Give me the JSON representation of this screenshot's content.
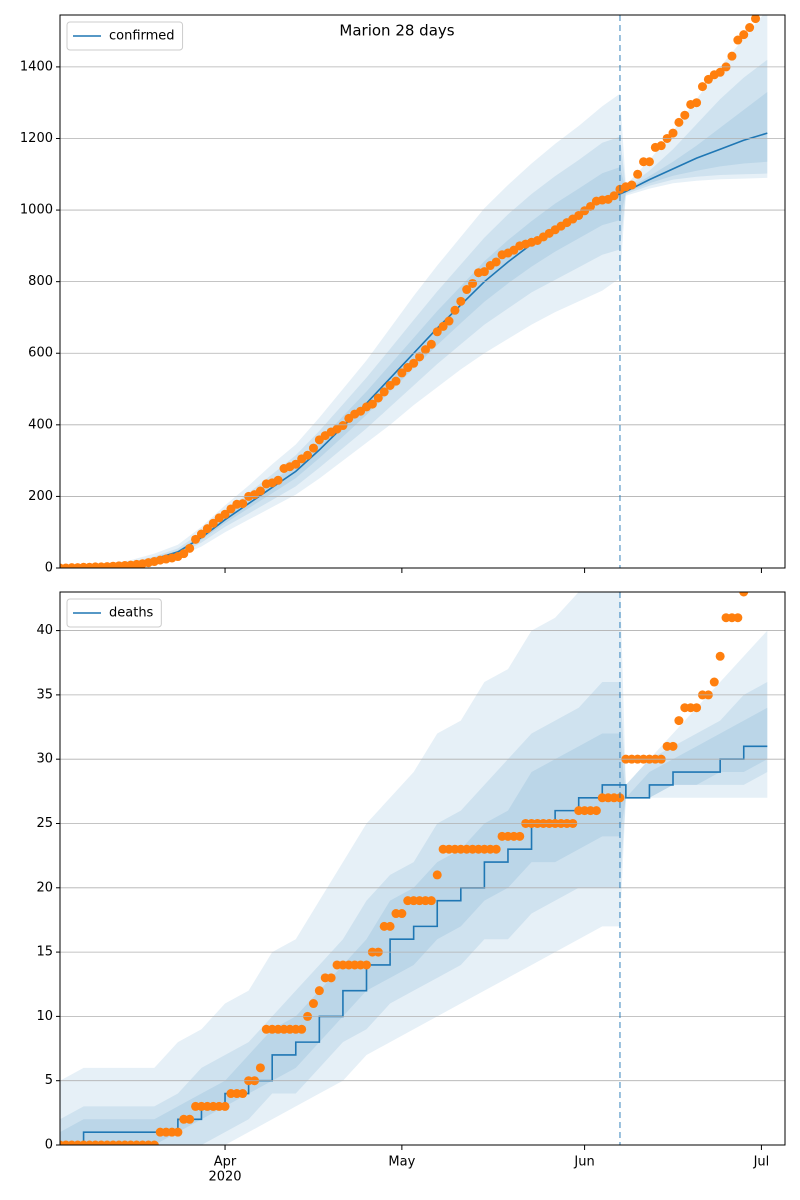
{
  "chart_data": [
    {
      "type": "line",
      "title": "Marion 28 days",
      "xlim": [
        0,
        123
      ],
      "ylim": [
        0,
        1545
      ],
      "yticks": [
        0,
        200,
        400,
        600,
        800,
        1000,
        1200,
        1400
      ],
      "grid": true,
      "legend": "upper left",
      "forecast_start": 95,
      "x": [
        0,
        4,
        8,
        12,
        16,
        20,
        24,
        28,
        32,
        36,
        40,
        44,
        48,
        52,
        56,
        60,
        64,
        68,
        72,
        76,
        80,
        84,
        88,
        92,
        95,
        96,
        100,
        104,
        108,
        112,
        116,
        120
      ],
      "series": [
        {
          "name": "confirmed",
          "color": "#1f77b4",
          "values": [
            0,
            1,
            3,
            10,
            25,
            45,
            85,
            135,
            180,
            225,
            270,
            330,
            395,
            460,
            530,
            600,
            670,
            735,
            800,
            855,
            905,
            950,
            990,
            1030,
            1045,
            1052,
            1085,
            1115,
            1145,
            1170,
            1195,
            1215
          ]
        },
        {
          "color": "#ff7f0e",
          "marker": "o",
          "x": [
            0,
            1,
            2,
            3,
            4,
            5,
            6,
            7,
            8,
            9,
            10,
            11,
            12,
            13,
            14,
            15,
            16,
            17,
            18,
            19,
            20,
            21,
            22,
            23,
            24,
            25,
            26,
            27,
            28,
            29,
            30,
            31,
            32,
            33,
            34,
            35,
            36,
            37,
            38,
            39,
            40,
            41,
            42,
            43,
            44,
            45,
            46,
            47,
            48,
            49,
            50,
            51,
            52,
            53,
            54,
            55,
            56,
            57,
            58,
            59,
            60,
            61,
            62,
            63,
            64,
            65,
            66,
            67,
            68,
            69,
            70,
            71,
            72,
            73,
            74,
            75,
            76,
            77,
            78,
            79,
            80,
            81,
            82,
            83,
            84,
            85,
            86,
            87,
            88,
            89,
            90,
            91,
            92,
            93,
            94,
            95,
            96,
            97,
            98,
            99,
            100,
            101,
            102,
            103,
            104,
            105,
            106,
            107,
            108,
            109,
            110,
            111,
            112,
            113,
            114,
            115,
            116,
            117,
            118
          ],
          "values": [
            0,
            0,
            1,
            1,
            2,
            2,
            3,
            3,
            4,
            5,
            6,
            7,
            8,
            10,
            12,
            15,
            18,
            22,
            25,
            28,
            32,
            40,
            55,
            80,
            95,
            110,
            125,
            140,
            150,
            165,
            178,
            180,
            200,
            205,
            215,
            235,
            238,
            245,
            278,
            283,
            290,
            305,
            315,
            335,
            358,
            370,
            380,
            388,
            398,
            418,
            430,
            438,
            450,
            458,
            475,
            492,
            510,
            522,
            545,
            560,
            572,
            590,
            610,
            625,
            660,
            675,
            690,
            720,
            745,
            778,
            795,
            825,
            828,
            845,
            855,
            875,
            880,
            888,
            900,
            905,
            910,
            915,
            925,
            935,
            945,
            955,
            965,
            975,
            985,
            998,
            1010,
            1025,
            1028,
            1030,
            1040,
            1058,
            1065,
            1070,
            1100,
            1135,
            1135,
            1175,
            1180,
            1200,
            1215,
            1245,
            1265,
            1295,
            1300,
            1345,
            1365,
            1378,
            1385,
            1400,
            1430,
            1475,
            1490,
            1510,
            1535
          ]
        }
      ],
      "bands": [
        {
          "color": "#1f77b4",
          "opacity": 0.11,
          "lower": [
            0,
            0,
            0,
            5,
            15,
            30,
            60,
            100,
            135,
            170,
            205,
            250,
            300,
            350,
            400,
            455,
            505,
            555,
            600,
            640,
            680,
            715,
            745,
            775,
            810,
            1040,
            1060,
            1075,
            1082,
            1086,
            1088,
            1090
          ],
          "upper": [
            3,
            6,
            12,
            22,
            40,
            65,
            115,
            175,
            230,
            290,
            345,
            420,
            500,
            580,
            670,
            760,
            845,
            925,
            1005,
            1070,
            1130,
            1185,
            1235,
            1290,
            1325,
            1070,
            1140,
            1220,
            1310,
            1400,
            1480,
            1560
          ]
        },
        {
          "color": "#1f77b4",
          "opacity": 0.11,
          "lower": [
            0,
            0,
            1,
            7,
            19,
            37,
            71,
            115,
            152,
            190,
            228,
            280,
            335,
            390,
            450,
            510,
            570,
            625,
            680,
            725,
            770,
            805,
            840,
            875,
            890,
            1045,
            1068,
            1085,
            1093,
            1098,
            1100,
            1102
          ],
          "upper": [
            2,
            4,
            8,
            16,
            32,
            55,
            100,
            158,
            210,
            262,
            315,
            383,
            457,
            532,
            612,
            693,
            773,
            848,
            923,
            988,
            1045,
            1095,
            1140,
            1188,
            1205,
            1062,
            1110,
            1170,
            1240,
            1310,
            1370,
            1420
          ]
        },
        {
          "color": "#1f77b4",
          "opacity": 0.11,
          "lower": [
            0,
            0,
            2,
            9,
            23,
            42,
            79,
            125,
            167,
            209,
            251,
            307,
            367,
            428,
            493,
            558,
            623,
            684,
            744,
            795,
            842,
            884,
            921,
            958,
            972,
            1049,
            1075,
            1096,
            1110,
            1122,
            1130,
            1135
          ],
          "upper": [
            1,
            2,
            4,
            12,
            28,
            49,
            92,
            145,
            194,
            242,
            290,
            354,
            424,
            493,
            568,
            643,
            718,
            787,
            857,
            916,
            969,
            1018,
            1060,
            1103,
            1120,
            1056,
            1095,
            1135,
            1180,
            1230,
            1280,
            1330
          ]
        }
      ]
    },
    {
      "type": "line",
      "xlim": [
        0,
        123
      ],
      "ylim": [
        0,
        43
      ],
      "yticks": [
        0,
        5,
        10,
        15,
        20,
        25,
        30,
        35,
        40
      ],
      "grid": true,
      "legend": "upper left",
      "forecast_start": 95,
      "step": true,
      "xticks": [
        {
          "value": 28,
          "label": "Apr"
        },
        {
          "value": 58,
          "label": "May"
        },
        {
          "value": 89,
          "label": "Jun"
        },
        {
          "value": 119,
          "label": "Jul"
        }
      ],
      "x_offset_label": "2020",
      "x": [
        0,
        4,
        8,
        12,
        16,
        20,
        24,
        28,
        32,
        36,
        40,
        44,
        48,
        52,
        56,
        60,
        64,
        68,
        72,
        76,
        80,
        84,
        88,
        92,
        95,
        96,
        100,
        104,
        108,
        112,
        116,
        120
      ],
      "series": [
        {
          "name": "deaths",
          "color": "#1f77b4",
          "values": [
            0,
            1,
            1,
            1,
            1,
            2,
            3,
            4,
            5,
            7,
            8,
            10,
            12,
            14,
            16,
            17,
            19,
            20,
            22,
            23,
            25,
            26,
            27,
            28,
            28,
            27,
            28,
            29,
            29,
            30,
            31,
            31
          ]
        },
        {
          "color": "#ff7f0e",
          "marker": "o",
          "x": [
            0,
            1,
            2,
            3,
            4,
            5,
            6,
            7,
            8,
            9,
            10,
            11,
            12,
            13,
            14,
            15,
            16,
            17,
            18,
            19,
            20,
            21,
            22,
            23,
            24,
            25,
            26,
            27,
            28,
            29,
            30,
            31,
            32,
            33,
            34,
            35,
            36,
            37,
            38,
            39,
            40,
            41,
            42,
            43,
            44,
            45,
            46,
            47,
            48,
            49,
            50,
            51,
            52,
            53,
            54,
            55,
            56,
            57,
            58,
            59,
            60,
            61,
            62,
            63,
            64,
            65,
            66,
            67,
            68,
            69,
            70,
            71,
            72,
            73,
            74,
            75,
            76,
            77,
            78,
            79,
            80,
            81,
            82,
            83,
            84,
            85,
            86,
            87,
            88,
            89,
            90,
            91,
            92,
            93,
            94,
            95,
            96,
            97,
            98,
            99,
            100,
            101,
            102,
            103,
            104,
            105,
            106,
            107,
            108,
            109,
            110,
            111,
            112,
            113,
            114,
            115,
            116
          ],
          "values": [
            0,
            0,
            0,
            0,
            0,
            0,
            0,
            0,
            0,
            0,
            0,
            0,
            0,
            0,
            0,
            0,
            0,
            1,
            1,
            1,
            1,
            2,
            2,
            3,
            3,
            3,
            3,
            3,
            3,
            4,
            4,
            4,
            5,
            5,
            6,
            9,
            9,
            9,
            9,
            9,
            9,
            9,
            10,
            11,
            12,
            13,
            13,
            14,
            14,
            14,
            14,
            14,
            14,
            15,
            15,
            17,
            17,
            18,
            18,
            19,
            19,
            19,
            19,
            19,
            21,
            23,
            23,
            23,
            23,
            23,
            23,
            23,
            23,
            23,
            23,
            24,
            24,
            24,
            24,
            25,
            25,
            25,
            25,
            25,
            25,
            25,
            25,
            25,
            26,
            26,
            26,
            26,
            27,
            27,
            27,
            27,
            30,
            30,
            30,
            30,
            30,
            30,
            30,
            31,
            31,
            33,
            34,
            34,
            34,
            35,
            35,
            36,
            38,
            41,
            41,
            41,
            43
          ]
        }
      ],
      "bands": [
        {
          "color": "#1f77b4",
          "opacity": 0.11,
          "lower": [
            0,
            0,
            0,
            0,
            0,
            0,
            0,
            0,
            1,
            2,
            3,
            4,
            5,
            7,
            8,
            9,
            10,
            11,
            12,
            13,
            14,
            15,
            16,
            17,
            17,
            27,
            27,
            27,
            27,
            27,
            27,
            27
          ],
          "upper": [
            5,
            6,
            6,
            6,
            6,
            8,
            9,
            11,
            12,
            15,
            16,
            19,
            22,
            25,
            27,
            29,
            32,
            33,
            36,
            37,
            40,
            41,
            43,
            44,
            44,
            28,
            30,
            32,
            34,
            36,
            38,
            40
          ]
        },
        {
          "color": "#1f77b4",
          "opacity": 0.11,
          "lower": [
            0,
            0,
            0,
            0,
            0,
            0,
            0,
            1,
            2,
            4,
            4,
            6,
            8,
            9,
            11,
            12,
            13,
            14,
            16,
            16,
            18,
            19,
            20,
            20,
            20,
            27,
            27,
            28,
            28,
            28,
            28,
            29
          ],
          "upper": [
            2,
            3,
            3,
            3,
            3,
            4,
            6,
            7,
            8,
            10,
            12,
            14,
            16,
            19,
            21,
            22,
            25,
            26,
            28,
            30,
            32,
            33,
            34,
            36,
            36,
            28,
            30,
            31,
            32,
            33,
            35,
            36
          ]
        },
        {
          "color": "#1f77b4",
          "opacity": 0.11,
          "lower": [
            0,
            0,
            0,
            0,
            0,
            1,
            2,
            3,
            4,
            5,
            6,
            8,
            10,
            12,
            13,
            14,
            16,
            17,
            19,
            20,
            22,
            22,
            23,
            24,
            24,
            27,
            27,
            28,
            28,
            29,
            29,
            30
          ],
          "upper": [
            1,
            2,
            2,
            2,
            2,
            3,
            4,
            5,
            7,
            9,
            10,
            12,
            14,
            16,
            19,
            20,
            22,
            23,
            25,
            26,
            29,
            30,
            31,
            32,
            32,
            27,
            29,
            30,
            31,
            32,
            33,
            34
          ]
        }
      ]
    }
  ]
}
